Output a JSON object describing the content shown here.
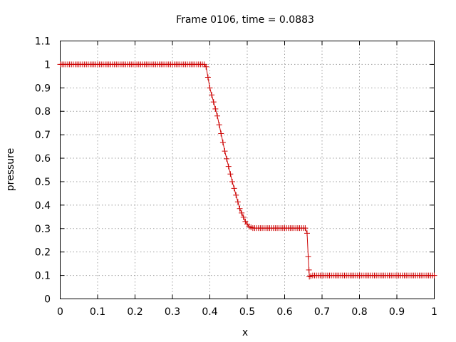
{
  "chart_data": {
    "type": "line",
    "title": "Frame 0106, time = 0.0883",
    "xlabel": "x",
    "ylabel": "pressure",
    "xlim": [
      0,
      1
    ],
    "ylim": [
      0,
      1.1
    ],
    "xticks": [
      0,
      0.1,
      0.2,
      0.3,
      0.4,
      0.5,
      0.6,
      0.7,
      0.8,
      0.9,
      1
    ],
    "yticks": [
      0,
      0.1,
      0.2,
      0.3,
      0.4,
      0.5,
      0.6,
      0.7,
      0.8,
      0.9,
      1,
      1.1
    ],
    "xtick_labels": [
      "0",
      "0.1",
      "0.2",
      "0.3",
      "0.4",
      "0.5",
      "0.6",
      "0.7",
      "0.8",
      "0.9",
      "1"
    ],
    "ytick_labels": [
      "0",
      "0.1",
      "0.2",
      "0.3",
      "0.4",
      "0.5",
      "0.6",
      "0.7",
      "0.8",
      "0.9",
      "1",
      "1.1"
    ],
    "grid": true,
    "legend": "none",
    "series": [
      {
        "marker": "plus",
        "color": "#cc0000",
        "breakpoints": [
          [
            0.0,
            1.0
          ],
          [
            0.385,
            1.0
          ],
          [
            0.39,
            0.99
          ],
          [
            0.4,
            0.9
          ],
          [
            0.42,
            0.78
          ],
          [
            0.44,
            0.63
          ],
          [
            0.46,
            0.5
          ],
          [
            0.48,
            0.385
          ],
          [
            0.495,
            0.33
          ],
          [
            0.505,
            0.308
          ],
          [
            0.515,
            0.302
          ],
          [
            0.655,
            0.302
          ],
          [
            0.66,
            0.28
          ],
          [
            0.663,
            0.18
          ],
          [
            0.666,
            0.095
          ],
          [
            0.675,
            0.1
          ],
          [
            1.0,
            0.1
          ]
        ],
        "step": 0.005
      }
    ]
  }
}
